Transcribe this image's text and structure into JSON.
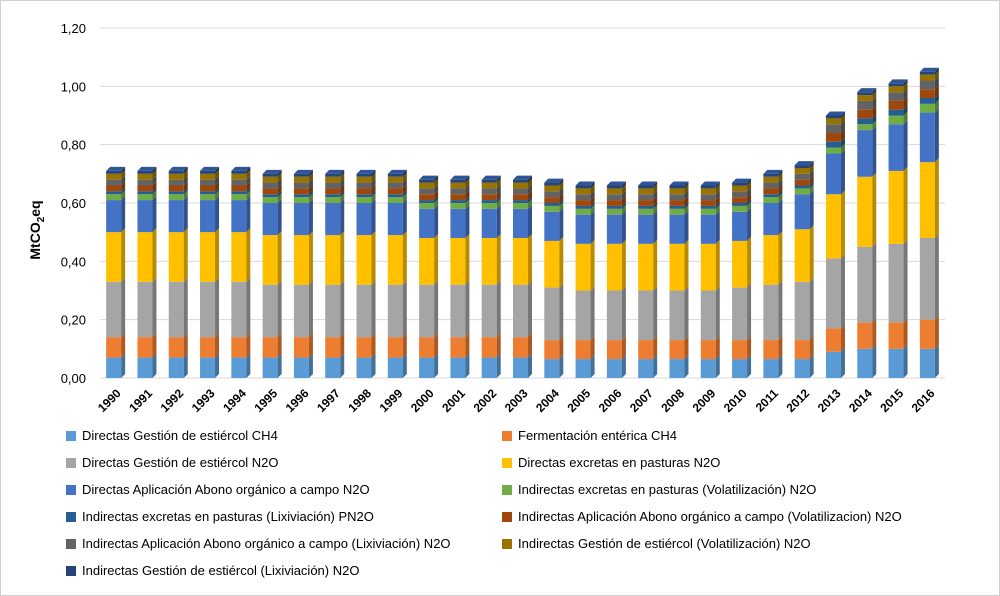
{
  "chart_data": {
    "type": "bar",
    "stacked": true,
    "title": "",
    "xlabel": "",
    "ylabel": "MtCO2eq",
    "ylabel_main": "MtCO",
    "ylabel_sub": "2",
    "ylabel_tail": "eq",
    "ylim": [
      0,
      1.2
    ],
    "yticks": [
      "0,00",
      "0,20",
      "0,40",
      "0,60",
      "0,80",
      "1,00",
      "1,20"
    ],
    "grid": true,
    "categories": [
      "1990",
      "1991",
      "1992",
      "1993",
      "1994",
      "1995",
      "1996",
      "1997",
      "1998",
      "1999",
      "2000",
      "2001",
      "2002",
      "2003",
      "2004",
      "2005",
      "2006",
      "2007",
      "2008",
      "2009",
      "2010",
      "2011",
      "2012",
      "2013",
      "2014",
      "2015",
      "2016"
    ],
    "series": [
      {
        "name": "Directas Gestión de estiércol CH4",
        "color": "#5b9bd5",
        "values": [
          0.07,
          0.07,
          0.07,
          0.07,
          0.07,
          0.07,
          0.07,
          0.07,
          0.07,
          0.07,
          0.07,
          0.07,
          0.07,
          0.07,
          0.065,
          0.065,
          0.065,
          0.065,
          0.065,
          0.065,
          0.065,
          0.065,
          0.065,
          0.09,
          0.1,
          0.1,
          0.1
        ]
      },
      {
        "name": "Fermentación entérica CH4",
        "color": "#ed7d31",
        "values": [
          0.07,
          0.07,
          0.07,
          0.07,
          0.07,
          0.07,
          0.07,
          0.07,
          0.07,
          0.07,
          0.07,
          0.07,
          0.07,
          0.07,
          0.065,
          0.065,
          0.065,
          0.065,
          0.065,
          0.065,
          0.065,
          0.065,
          0.065,
          0.08,
          0.09,
          0.09,
          0.1
        ]
      },
      {
        "name": "Directas Gestión de estiércol N2O",
        "color": "#a5a5a5",
        "values": [
          0.19,
          0.19,
          0.19,
          0.19,
          0.19,
          0.18,
          0.18,
          0.18,
          0.18,
          0.18,
          0.18,
          0.18,
          0.18,
          0.18,
          0.18,
          0.17,
          0.17,
          0.17,
          0.17,
          0.17,
          0.18,
          0.19,
          0.2,
          0.24,
          0.26,
          0.27,
          0.28
        ]
      },
      {
        "name": "Directas excretas en pasturas N2O",
        "color": "#ffc000",
        "values": [
          0.17,
          0.17,
          0.17,
          0.17,
          0.17,
          0.17,
          0.17,
          0.17,
          0.17,
          0.17,
          0.16,
          0.16,
          0.16,
          0.16,
          0.16,
          0.16,
          0.16,
          0.16,
          0.16,
          0.16,
          0.16,
          0.17,
          0.18,
          0.22,
          0.24,
          0.25,
          0.26
        ]
      },
      {
        "name": "Directas Aplicación Abono orgánico a campo N2O",
        "color": "#4472c4",
        "values": [
          0.11,
          0.11,
          0.11,
          0.11,
          0.11,
          0.11,
          0.11,
          0.11,
          0.11,
          0.11,
          0.1,
          0.1,
          0.1,
          0.1,
          0.1,
          0.1,
          0.1,
          0.1,
          0.1,
          0.1,
          0.1,
          0.11,
          0.12,
          0.14,
          0.16,
          0.16,
          0.17
        ]
      },
      {
        "name": "Indirectas excretas en pasturas (Volatilización) N2O",
        "color": "#70ad47",
        "values": [
          0.02,
          0.02,
          0.02,
          0.02,
          0.02,
          0.02,
          0.02,
          0.02,
          0.02,
          0.02,
          0.02,
          0.02,
          0.02,
          0.02,
          0.02,
          0.02,
          0.02,
          0.02,
          0.02,
          0.02,
          0.02,
          0.02,
          0.02,
          0.02,
          0.02,
          0.03,
          0.03
        ]
      },
      {
        "name": "Indirectas excretas en pasturas (Lixiviación) PN2O",
        "color": "#255e91",
        "values": [
          0.01,
          0.01,
          0.01,
          0.01,
          0.01,
          0.01,
          0.01,
          0.01,
          0.01,
          0.01,
          0.01,
          0.01,
          0.01,
          0.01,
          0.01,
          0.01,
          0.01,
          0.01,
          0.01,
          0.01,
          0.01,
          0.01,
          0.01,
          0.02,
          0.02,
          0.02,
          0.02
        ]
      },
      {
        "name": "Indirectas Aplicación Abono orgánico a campo (Volatilizacion) N2O",
        "color": "#9e480e",
        "values": [
          0.02,
          0.02,
          0.02,
          0.02,
          0.02,
          0.02,
          0.02,
          0.02,
          0.02,
          0.02,
          0.02,
          0.02,
          0.02,
          0.02,
          0.02,
          0.02,
          0.02,
          0.02,
          0.02,
          0.02,
          0.02,
          0.02,
          0.02,
          0.03,
          0.03,
          0.03,
          0.03
        ]
      },
      {
        "name": "Indirectas Aplicación Abono orgánico a campo (Lixiviación) N2O",
        "color": "#636363",
        "values": [
          0.02,
          0.02,
          0.02,
          0.02,
          0.02,
          0.02,
          0.02,
          0.02,
          0.02,
          0.02,
          0.02,
          0.02,
          0.02,
          0.02,
          0.02,
          0.02,
          0.02,
          0.02,
          0.02,
          0.02,
          0.02,
          0.02,
          0.02,
          0.03,
          0.03,
          0.03,
          0.03
        ]
      },
      {
        "name": "Indirectas Gestión de estiércol (Volatilización) N2O",
        "color": "#997300",
        "values": [
          0.02,
          0.02,
          0.02,
          0.02,
          0.02,
          0.02,
          0.02,
          0.02,
          0.02,
          0.02,
          0.02,
          0.02,
          0.02,
          0.02,
          0.02,
          0.02,
          0.02,
          0.02,
          0.02,
          0.02,
          0.02,
          0.02,
          0.02,
          0.02,
          0.02,
          0.02,
          0.02
        ]
      },
      {
        "name": "Indirectas Gestión de estiércol (Lixiviación) N2O",
        "color": "#264478",
        "values": [
          0.01,
          0.01,
          0.01,
          0.01,
          0.01,
          0.01,
          0.01,
          0.01,
          0.01,
          0.01,
          0.01,
          0.01,
          0.01,
          0.01,
          0.01,
          0.01,
          0.01,
          0.01,
          0.01,
          0.01,
          0.01,
          0.01,
          0.01,
          0.01,
          0.01,
          0.01,
          0.01
        ]
      }
    ]
  }
}
